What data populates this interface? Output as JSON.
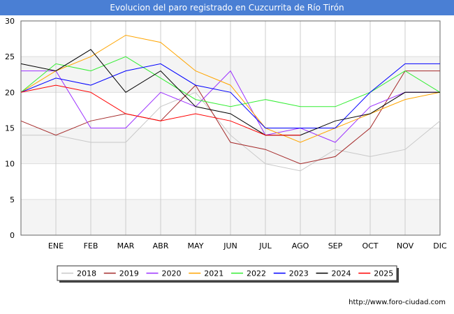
{
  "header": {
    "title": "Evolucion del paro registrado en Cuzcurrita de Río Tirón"
  },
  "footer": {
    "credit": "http://www.foro-ciudad.com"
  },
  "chart_data": {
    "type": "line",
    "title": "Evolucion del paro registrado en Cuzcurrita de Río Tirón",
    "xlabel": "",
    "ylabel": "",
    "categories": [
      "",
      "ENE",
      "FEB",
      "MAR",
      "ABR",
      "MAY",
      "JUN",
      "JUL",
      "AGO",
      "SEP",
      "OCT",
      "NOV",
      "DIC"
    ],
    "ylim": [
      0,
      30
    ],
    "yticks": [
      0,
      5,
      10,
      15,
      20,
      25,
      30
    ],
    "grid": true,
    "legend_position": "bottom",
    "series": [
      {
        "name": "2018",
        "color": "#c8c8c8",
        "values": [
          14,
          14,
          13,
          13,
          18,
          20,
          14,
          10,
          9,
          12,
          11,
          12,
          16
        ]
      },
      {
        "name": "2019",
        "color": "#a52a2a",
        "values": [
          16,
          14,
          16,
          17,
          16,
          21,
          13,
          12,
          10,
          11,
          15,
          23,
          23
        ]
      },
      {
        "name": "2020",
        "color": "#9b30ff",
        "values": [
          23,
          23,
          15,
          15,
          20,
          18,
          23,
          14,
          15,
          13,
          18,
          20,
          20
        ]
      },
      {
        "name": "2021",
        "color": "#ffa500",
        "values": [
          20,
          23,
          25,
          28,
          27,
          23,
          21,
          15,
          13,
          15,
          17,
          19,
          20
        ]
      },
      {
        "name": "2022",
        "color": "#33ee33",
        "values": [
          20,
          24,
          23,
          25,
          22,
          19,
          18,
          19,
          18,
          18,
          20,
          23,
          20
        ]
      },
      {
        "name": "2023",
        "color": "#0000ff",
        "values": [
          20,
          22,
          21,
          23,
          24,
          21,
          20,
          15,
          15,
          15,
          20,
          24,
          24
        ]
      },
      {
        "name": "2024",
        "color": "#000000",
        "values": [
          24,
          23,
          26,
          20,
          23,
          18,
          17,
          14,
          14,
          16,
          17,
          20,
          20
        ]
      },
      {
        "name": "2025",
        "color": "#ff0000",
        "values": [
          20,
          21,
          20,
          17,
          16,
          17,
          16,
          14,
          14,
          null,
          null,
          null,
          null
        ]
      }
    ]
  }
}
